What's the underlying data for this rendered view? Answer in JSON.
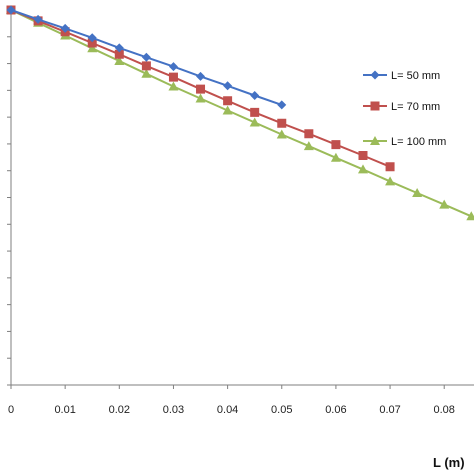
{
  "chart_data": {
    "type": "line",
    "xlabel": "L (m)",
    "ylabel": "",
    "xlim": [
      0,
      0.0855
    ],
    "ylim": [
      0,
      1
    ],
    "x_ticks": [
      "0",
      "0.01",
      "0.02",
      "0.03",
      "0.04",
      "0.05",
      "0.06",
      "0.07",
      "0.08"
    ],
    "y_tick_count": 15,
    "grid": false,
    "legend_position": "right",
    "series": [
      {
        "name": "L= 50 mm",
        "color": "#4472C4",
        "marker": "diamond",
        "x": [
          0,
          0.005,
          0.01,
          0.015,
          0.02,
          0.025,
          0.03,
          0.035,
          0.04,
          0.045,
          0.05
        ],
        "y": [
          1.0,
          0.975,
          0.951,
          0.926,
          0.899,
          0.874,
          0.849,
          0.823,
          0.798,
          0.772,
          0.747
        ]
      },
      {
        "name": "L= 70 mm",
        "color": "#C0504D",
        "marker": "square",
        "x": [
          0,
          0.005,
          0.01,
          0.015,
          0.02,
          0.025,
          0.03,
          0.035,
          0.04,
          0.045,
          0.05,
          0.055,
          0.06,
          0.065,
          0.07
        ],
        "y": [
          1.0,
          0.971,
          0.942,
          0.912,
          0.882,
          0.851,
          0.821,
          0.789,
          0.758,
          0.727,
          0.698,
          0.67,
          0.641,
          0.612,
          0.582
        ]
      },
      {
        "name": "L= 100 mm",
        "color": "#9BBB59",
        "marker": "triangle",
        "x": [
          0,
          0.005,
          0.01,
          0.015,
          0.02,
          0.025,
          0.03,
          0.035,
          0.04,
          0.045,
          0.05,
          0.055,
          0.06,
          0.065,
          0.07,
          0.075,
          0.08,
          0.085
        ],
        "y": [
          1.0,
          0.966,
          0.932,
          0.898,
          0.864,
          0.83,
          0.796,
          0.764,
          0.732,
          0.7,
          0.668,
          0.637,
          0.606,
          0.575,
          0.543,
          0.512,
          0.481,
          0.45
        ]
      }
    ]
  }
}
